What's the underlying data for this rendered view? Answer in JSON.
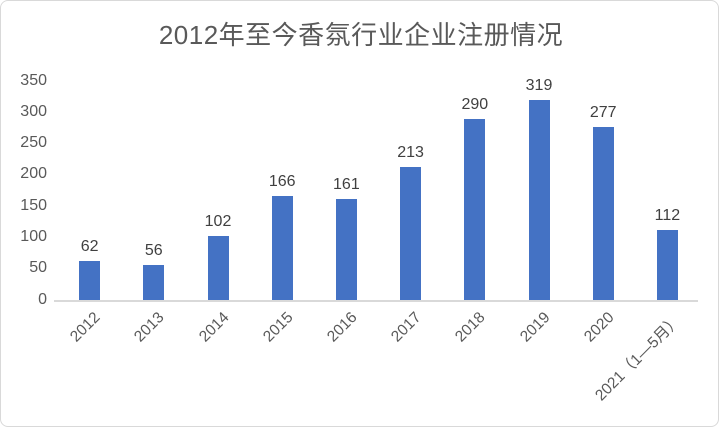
{
  "card": {
    "background": "#ffffff",
    "border_color": "#d9d9d9"
  },
  "chart_data": {
    "type": "bar",
    "title": "2012年至今香氛行业企业注册情况",
    "categories": [
      "2012",
      "2013",
      "2014",
      "2015",
      "2016",
      "2017",
      "2018",
      "2019",
      "2020",
      "2021（1—5月）"
    ],
    "values": [
      62,
      56,
      102,
      166,
      161,
      213,
      290,
      319,
      277,
      112
    ],
    "y_ticks": [
      0,
      50,
      100,
      150,
      200,
      250,
      300,
      350
    ],
    "ylim": [
      0,
      350
    ],
    "xlabel": "",
    "ylabel": "",
    "grid": false,
    "legend": "none",
    "data_labels_shown": true,
    "x_label_rotation_deg": -45,
    "colors": {
      "bar": "#4472C4",
      "title": "#595959",
      "axis_labels": "#595959",
      "data_labels": "#404040",
      "axis_line": "#d9d9d9"
    }
  }
}
